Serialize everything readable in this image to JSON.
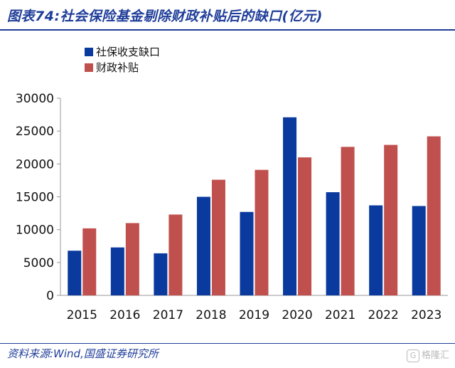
{
  "title": "图表74:社会保险基金剔除财政补贴后的缺口(亿元)",
  "source": "资料来源:Wind,国盛证券研究所",
  "watermark": "格隆汇",
  "colors": {
    "series_1": "#0a3a9e",
    "series_2": "#c0504d",
    "accent": "#1f3d99"
  },
  "chart_data": {
    "type": "bar",
    "categories": [
      "2015",
      "2016",
      "2017",
      "2018",
      "2019",
      "2020",
      "2021",
      "2022",
      "2023"
    ],
    "series": [
      {
        "name": "社保收支缺口",
        "values": [
          6800,
          7300,
          6400,
          15000,
          12700,
          27100,
          15700,
          13700,
          13600
        ]
      },
      {
        "name": "财政补贴",
        "values": [
          10200,
          11000,
          12300,
          17600,
          19100,
          21000,
          22600,
          22900,
          24200
        ]
      }
    ],
    "ylim": [
      0,
      30000
    ],
    "yticks": [
      0,
      5000,
      10000,
      15000,
      20000,
      25000,
      30000
    ],
    "legend_position": "top-left",
    "grid": false
  }
}
